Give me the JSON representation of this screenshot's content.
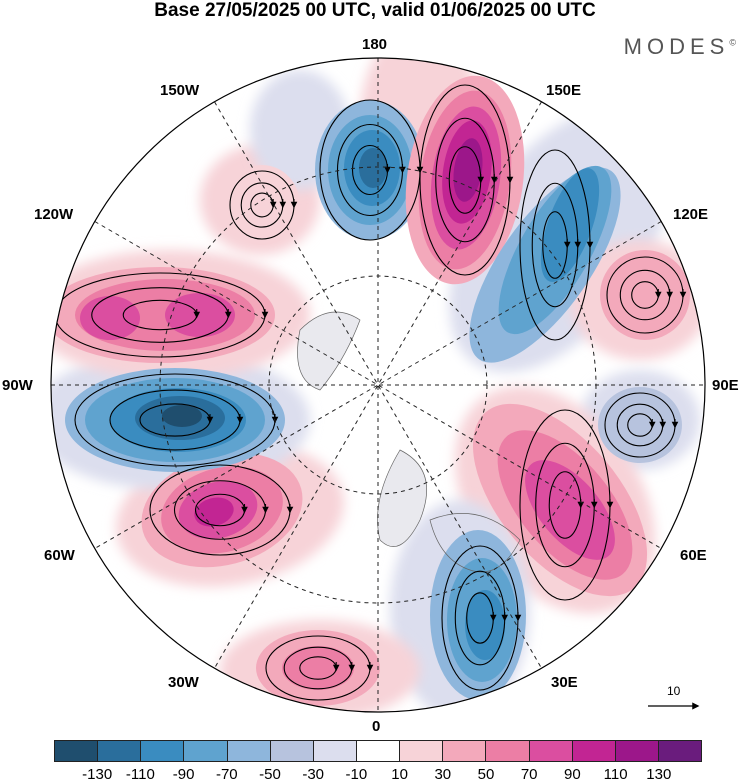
{
  "title": "Base 27/05/2025 00 UTC, valid 01/06/2025 00 UTC",
  "brand": "MODES",
  "brand_mark": "©",
  "longitude_labels": {
    "lon_180": "180",
    "lon_150e": "150E",
    "lon_120e": "120E",
    "lon_90e": "90E",
    "lon_60e": "60E",
    "lon_30e": "30E",
    "lon_0": "0",
    "lon_30w": "30W",
    "lon_60w": "60W",
    "lon_90w": "90W",
    "lon_120w": "120W",
    "lon_150w": "150W"
  },
  "reference_vector": {
    "label": "10"
  },
  "colorbar": {
    "colors": [
      "#1f4e6e",
      "#2a6e9c",
      "#3a8cc0",
      "#5fa3cf",
      "#8eb6dc",
      "#b7c3de",
      "#dcdeee",
      "#ffffff",
      "#f7d3d8",
      "#f3a9bb",
      "#ec7ea5",
      "#db4ea0",
      "#c22593",
      "#9c178a",
      "#6a1c7d"
    ],
    "labels": [
      "-130",
      "-110",
      "-90",
      "-70",
      "-50",
      "-30",
      "-10",
      "10",
      "30",
      "50",
      "70",
      "90",
      "110",
      "130"
    ]
  },
  "anomaly_cells": [
    {
      "name": "north-pacific-low",
      "value": -110
    },
    {
      "name": "east-asia-high",
      "value": 120
    },
    {
      "name": "east-siberia-low",
      "value": -80
    },
    {
      "name": "central-asia-high",
      "value": 40
    },
    {
      "name": "urals-low",
      "value": -40
    },
    {
      "name": "west-russia-high",
      "value": 90
    },
    {
      "name": "scandinavia-low",
      "value": -90
    },
    {
      "name": "north-atlantic-high",
      "value": 50
    },
    {
      "name": "western-atlantic-high",
      "value": 100
    },
    {
      "name": "canada-low",
      "value": -120
    },
    {
      "name": "north-america-high",
      "value": 80
    },
    {
      "name": "alaska-high",
      "value": 20
    }
  ]
}
